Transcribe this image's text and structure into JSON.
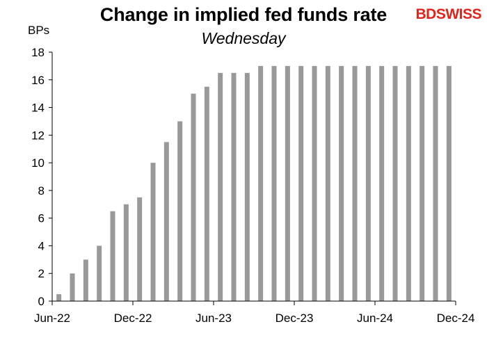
{
  "header": {
    "title": "Change in implied fed funds rate",
    "subtitle": "Wednesday",
    "logo_text_bd": "BD",
    "logo_text_swiss": "SWISS"
  },
  "colors": {
    "bar": "#999999",
    "axis": "#000000",
    "logo": "#e2231a"
  },
  "chart_data": {
    "type": "bar",
    "title": "Change in implied fed funds rate",
    "subtitle": "Wednesday",
    "ylabel": "BPs",
    "xlabel": "",
    "ylim": [
      0,
      18
    ],
    "yticks": [
      0,
      2,
      4,
      6,
      8,
      10,
      12,
      14,
      16,
      18
    ],
    "x_tick_labels": [
      "Jun-22",
      "Dec-22",
      "Jun-23",
      "Dec-23",
      "Jun-24",
      "Dec-24"
    ],
    "grid": false,
    "legend": "none",
    "values": [
      0.5,
      2,
      3,
      4,
      6.5,
      7,
      7.5,
      10,
      11.5,
      13,
      15,
      15.5,
      16.5,
      16.5,
      16.5,
      17,
      17,
      17,
      17,
      17,
      17,
      17,
      17,
      17,
      17,
      17,
      17,
      17,
      17,
      17
    ]
  }
}
